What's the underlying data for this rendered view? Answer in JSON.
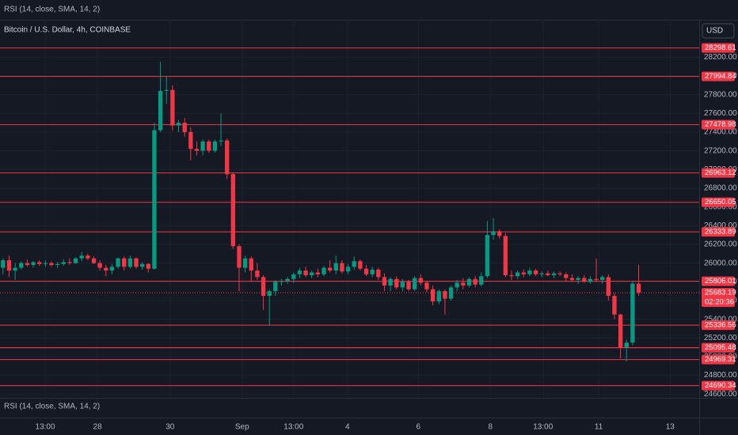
{
  "chart_data": {
    "type": "candlestick",
    "indicator": "RSI (14, close, SMA, 14, 2)",
    "title": "Bitcoin / U.S. Dollar, 4h, COINBASE",
    "currency": "USD",
    "up_color": "#089981",
    "down_color": "#f23645",
    "level_color": "#f23645",
    "grid": true,
    "xlim": [
      -0.5,
      115
    ],
    "ylim": [
      24560,
      28600
    ],
    "xticks": [
      {
        "value": 6.96,
        "label": "13:00"
      },
      {
        "value": 15.6,
        "label": "28"
      },
      {
        "value": 27.6,
        "label": "30"
      },
      {
        "value": 39.5,
        "label": "Sep"
      },
      {
        "value": 48.0,
        "label": "13:00"
      },
      {
        "value": 56.9,
        "label": "4"
      },
      {
        "value": 68.6,
        "label": "6"
      },
      {
        "value": 80.5,
        "label": "8"
      },
      {
        "value": 89.2,
        "label": "13:00"
      },
      {
        "value": 98.4,
        "label": "11"
      },
      {
        "value": 110.2,
        "label": "13"
      }
    ],
    "yticks": [
      {
        "value": 24600,
        "label": "24600.00"
      },
      {
        "value": 24800,
        "label": "24800.00"
      },
      {
        "value": 25000,
        "label": "25000.00"
      },
      {
        "value": 25200,
        "label": "25200.00"
      },
      {
        "value": 25400,
        "label": "25400.00"
      },
      {
        "value": 25600,
        "label": "25600.00"
      },
      {
        "value": 25800,
        "label": "25800.00"
      },
      {
        "value": 26000,
        "label": "26000.00"
      },
      {
        "value": 26200,
        "label": "26200.00"
      },
      {
        "value": 26400,
        "label": "26400.00"
      },
      {
        "value": 26600,
        "label": "26600.00"
      },
      {
        "value": 26800,
        "label": "26800.00"
      },
      {
        "value": 27000,
        "label": "27000.00"
      },
      {
        "value": 27200,
        "label": "27200.00"
      },
      {
        "value": 27400,
        "label": "27400.00"
      },
      {
        "value": 27600,
        "label": "27600.00"
      },
      {
        "value": 27800,
        "label": "27800.00"
      },
      {
        "value": 28000,
        "label": "28000.00"
      },
      {
        "value": 28200,
        "label": "28200.00"
      }
    ],
    "levels": [
      28298.61,
      27994.84,
      27478.98,
      26963.12,
      26650.05,
      26333.89,
      25806.01,
      25336.56,
      25095.72,
      25095.48,
      24969.31,
      24690.34
    ],
    "last_price": 25683.19,
    "countdown": "02:20:36",
    "open": [
      25950,
      26030,
      25920,
      25950,
      26000,
      25980,
      26010,
      25990,
      26000,
      25980,
      25990,
      26010,
      26000,
      26050,
      26080,
      26050,
      26000,
      25950,
      25920,
      25960,
      26050,
      25960,
      26050,
      25960,
      25990,
      25940,
      27420,
      27840,
      27850,
      27470,
      27500,
      27400,
      27220,
      27200,
      27300,
      27200,
      27300,
      27310,
      26950,
      26180,
      25950,
      26050,
      25920,
      25850,
      25650,
      25700,
      25800,
      25810,
      25830,
      25880,
      25920,
      25870,
      25900,
      25880,
      25950,
      25920,
      26000,
      25910,
      25960,
      26020,
      25940,
      25880,
      25930,
      25850,
      25760,
      25830,
      25740,
      25800,
      25720,
      25840,
      25790,
      25720,
      25590,
      25700,
      25620,
      25740,
      25790,
      25760,
      25830,
      25770,
      25860,
      26300,
      26340,
      26290,
      25870,
      25860,
      25900,
      25880,
      25920,
      25880,
      25890,
      25870,
      25890,
      25880,
      25840,
      25820,
      25840,
      25800,
      25830,
      25820,
      25850,
      25650,
      25450,
      25100,
      25150,
      25780
    ],
    "high": [
      26050,
      26080,
      26000,
      26020,
      26040,
      26020,
      26030,
      26030,
      26020,
      26010,
      26040,
      26050,
      26060,
      26120,
      26100,
      26070,
      26030,
      25980,
      25990,
      26060,
      26070,
      26080,
      26060,
      26010,
      26000,
      27500,
      28150,
      28000,
      27900,
      27530,
      27550,
      27450,
      27300,
      27320,
      27320,
      27320,
      27600,
      27330,
      26970,
      26200,
      26080,
      26070,
      26000,
      25870,
      25720,
      25820,
      25830,
      25850,
      25900,
      25950,
      25960,
      25920,
      25940,
      25970,
      26030,
      26080,
      26030,
      25990,
      26070,
      26040,
      25980,
      25960,
      25950,
      25890,
      25850,
      25860,
      25830,
      25820,
      25860,
      25880,
      25810,
      25760,
      25720,
      25720,
      25760,
      25820,
      25840,
      25850,
      25860,
      25900,
      26450,
      26480,
      26360,
      26320,
      25920,
      25920,
      25930,
      25950,
      25940,
      25910,
      25920,
      25910,
      25910,
      25900,
      25880,
      25860,
      25870,
      25860,
      26050,
      25870,
      25880,
      25680,
      25460,
      25180,
      25800,
      25980
    ],
    "low": [
      25880,
      25850,
      25820,
      25930,
      25960,
      25950,
      25970,
      25960,
      25960,
      25950,
      25970,
      25980,
      25990,
      26020,
      26030,
      25990,
      25920,
      25860,
      25880,
      25940,
      25920,
      25940,
      25940,
      25930,
      25900,
      25930,
      27400,
      27700,
      27420,
      27400,
      27350,
      27100,
      27150,
      27150,
      27180,
      27180,
      27250,
      26900,
      26150,
      25700,
      25900,
      25800,
      25820,
      25500,
      25330,
      25650,
      25760,
      25780,
      25790,
      25840,
      25850,
      25840,
      25850,
      25860,
      25900,
      25880,
      25890,
      25880,
      25930,
      25920,
      25860,
      25850,
      25820,
      25700,
      25700,
      25720,
      25700,
      25700,
      25700,
      25760,
      25690,
      25550,
      25560,
      25450,
      25600,
      25700,
      25720,
      25740,
      25740,
      25750,
      25840,
      26250,
      26260,
      25850,
      25820,
      25830,
      25850,
      25860,
      25860,
      25850,
      25860,
      25840,
      25860,
      25800,
      25800,
      25780,
      25790,
      25780,
      25800,
      25780,
      25600,
      25400,
      24980,
      24950,
      25120,
      25650
    ],
    "close": [
      26030,
      25920,
      25950,
      26000,
      25980,
      26010,
      25990,
      26000,
      25980,
      25990,
      26010,
      26000,
      26050,
      26080,
      26050,
      26000,
      25950,
      25920,
      25960,
      26050,
      25960,
      26050,
      25960,
      25990,
      25940,
      27420,
      27840,
      27850,
      27470,
      27500,
      27400,
      27220,
      27200,
      27300,
      27200,
      27300,
      27310,
      26950,
      26180,
      25950,
      26050,
      25920,
      25850,
      25650,
      25700,
      25800,
      25810,
      25830,
      25880,
      25920,
      25870,
      25900,
      25880,
      25950,
      25920,
      26000,
      25910,
      25960,
      26020,
      25940,
      25880,
      25930,
      25850,
      25760,
      25830,
      25740,
      25800,
      25720,
      25840,
      25790,
      25720,
      25590,
      25700,
      25620,
      25740,
      25790,
      25760,
      25830,
      25770,
      25860,
      26300,
      26340,
      26290,
      25870,
      25860,
      25900,
      25880,
      25920,
      25880,
      25890,
      25870,
      25890,
      25880,
      25840,
      25820,
      25840,
      25800,
      25830,
      25820,
      25850,
      25650,
      25450,
      25100,
      25150,
      25780,
      25683.19
    ]
  }
}
